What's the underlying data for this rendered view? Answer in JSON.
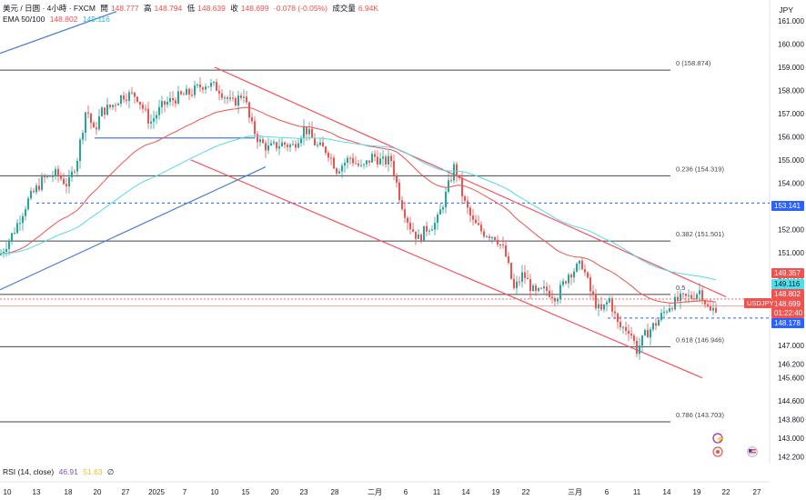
{
  "header": {
    "symbol": "美元 / 日圆 · 4小時 · FXCM",
    "open_label": "開",
    "open": "148.777",
    "high_label": "高",
    "high": "148.794",
    "low_label": "低",
    "low": "148.639",
    "close_label": "收",
    "close": "148.699",
    "change": "-0.078 (-0.05%)",
    "volume_label": "成交量",
    "volume": "6.94K",
    "currency": "JPY"
  },
  "indicators": {
    "ema_label": "EMA 50/100",
    "ema50": "148.802",
    "ema100": "149.116",
    "rsi_label": "RSI (14, close)",
    "rsi_value": "46.91",
    "rsi_ma": "51.63",
    "rsi_extra": "∅"
  },
  "colors": {
    "up": "#26a69a",
    "down": "#ef5350",
    "ema50": "#f2504d",
    "ema100": "#59d8e6",
    "channel": "#f7525f",
    "trend_blue": "#4a7bd6",
    "level_line": "#131722",
    "price_badge": "#ef5350",
    "ema100_badge": "#4de0ee",
    "blue_badge": "#2962ff"
  },
  "chart_data": {
    "type": "candlestick",
    "ylim": [
      141.9,
      161.9
    ],
    "y_ticks": [
      "161.000",
      "160.000",
      "159.000",
      "158.000",
      "157.000",
      "156.000",
      "155.000",
      "154.000",
      "153.000",
      "152.000",
      "151.000",
      "150.000",
      "149.000",
      "148.000",
      "147.000",
      "146.200",
      "145.600",
      "144.600",
      "143.800",
      "143.000",
      "142.200"
    ],
    "x_ticks": [
      "10",
      "13",
      "18",
      "20",
      "27",
      "2025",
      "7",
      "10",
      "15",
      "20",
      "23",
      "28",
      "二月",
      "6",
      "11",
      "14",
      "19",
      "22",
      "三月",
      "6",
      "11",
      "14",
      "19",
      "22",
      "27"
    ],
    "fib_levels": [
      {
        "label": "0 (158.874)",
        "price": 158.874
      },
      {
        "label": "0.236 (154.319)",
        "price": 154.319
      },
      {
        "label": "0.382 (151.501)",
        "price": 151.501
      },
      {
        "label": "0.5",
        "price": 149.2
      },
      {
        "label": "0.618 (146.946)",
        "price": 146.946
      },
      {
        "label": "0.786 (143.703)",
        "price": 143.703
      }
    ],
    "dashed_levels": [
      {
        "price": 153.141,
        "label": "153.141"
      },
      {
        "price": 148.178,
        "label": "148.178"
      }
    ],
    "price_badges": [
      {
        "label": "149.357",
        "price": 149.357,
        "kind": "red"
      },
      {
        "label": "149.116",
        "price": 149.116,
        "kind": "cyan"
      },
      {
        "label": "148.802",
        "price": 148.802,
        "kind": "red"
      },
      {
        "label": "148.699",
        "price": 148.699,
        "kind": "red"
      },
      {
        "label": "01:22:40",
        "price": 148.37,
        "kind": "red"
      },
      {
        "label": "148.178",
        "price": 148.178,
        "kind": "blue"
      },
      {
        "label": "153.141",
        "price": 153.141,
        "kind": "blue"
      }
    ],
    "symbol_tag": "USDJPY",
    "close_path": [
      [
        0,
        150.9
      ],
      [
        15,
        151.9
      ],
      [
        30,
        153.2
      ],
      [
        48,
        154.2
      ],
      [
        62,
        154.4
      ],
      [
        75,
        153.9
      ],
      [
        85,
        155.1
      ],
      [
        95,
        157.3
      ],
      [
        103,
        156.2
      ],
      [
        112,
        157.1
      ],
      [
        122,
        157.3
      ],
      [
        135,
        157.8
      ],
      [
        150,
        157.8
      ],
      [
        165,
        156.6
      ],
      [
        180,
        157.4
      ],
      [
        195,
        157.7
      ],
      [
        210,
        157.9
      ],
      [
        225,
        158.3
      ],
      [
        240,
        158.1
      ],
      [
        255,
        157.4
      ],
      [
        268,
        157.9
      ],
      [
        275,
        156.6
      ],
      [
        285,
        155.8
      ],
      [
        295,
        155.5
      ],
      [
        310,
        155.7
      ],
      [
        322,
        155.6
      ],
      [
        335,
        156.4
      ],
      [
        348,
        155.6
      ],
      [
        360,
        155.4
      ],
      [
        370,
        154.6
      ],
      [
        385,
        155.1
      ],
      [
        398,
        154.6
      ],
      [
        410,
        155.2
      ],
      [
        420,
        154.9
      ],
      [
        430,
        155.0
      ],
      [
        440,
        153.3
      ],
      [
        450,
        152.2
      ],
      [
        460,
        151.6
      ],
      [
        470,
        152.1
      ],
      [
        480,
        152.3
      ],
      [
        490,
        153.5
      ],
      [
        500,
        154.8
      ],
      [
        510,
        153.2
      ],
      [
        520,
        152.3
      ],
      [
        530,
        151.9
      ],
      [
        545,
        151.7
      ],
      [
        555,
        151.0
      ],
      [
        565,
        149.4
      ],
      [
        575,
        150.1
      ],
      [
        588,
        149.2
      ],
      [
        600,
        149.4
      ],
      [
        612,
        149.1
      ],
      [
        625,
        150.1
      ],
      [
        640,
        150.5
      ],
      [
        650,
        149.2
      ],
      [
        660,
        148.4
      ],
      [
        670,
        149.0
      ],
      [
        680,
        147.8
      ],
      [
        692,
        147.7
      ],
      [
        700,
        146.8
      ],
      [
        710,
        147.5
      ],
      [
        722,
        148.0
      ],
      [
        735,
        148.7
      ],
      [
        748,
        149.0
      ],
      [
        760,
        149.1
      ],
      [
        770,
        149.4
      ],
      [
        775,
        148.9
      ],
      [
        780,
        148.4
      ],
      [
        788,
        148.7
      ]
    ]
  }
}
